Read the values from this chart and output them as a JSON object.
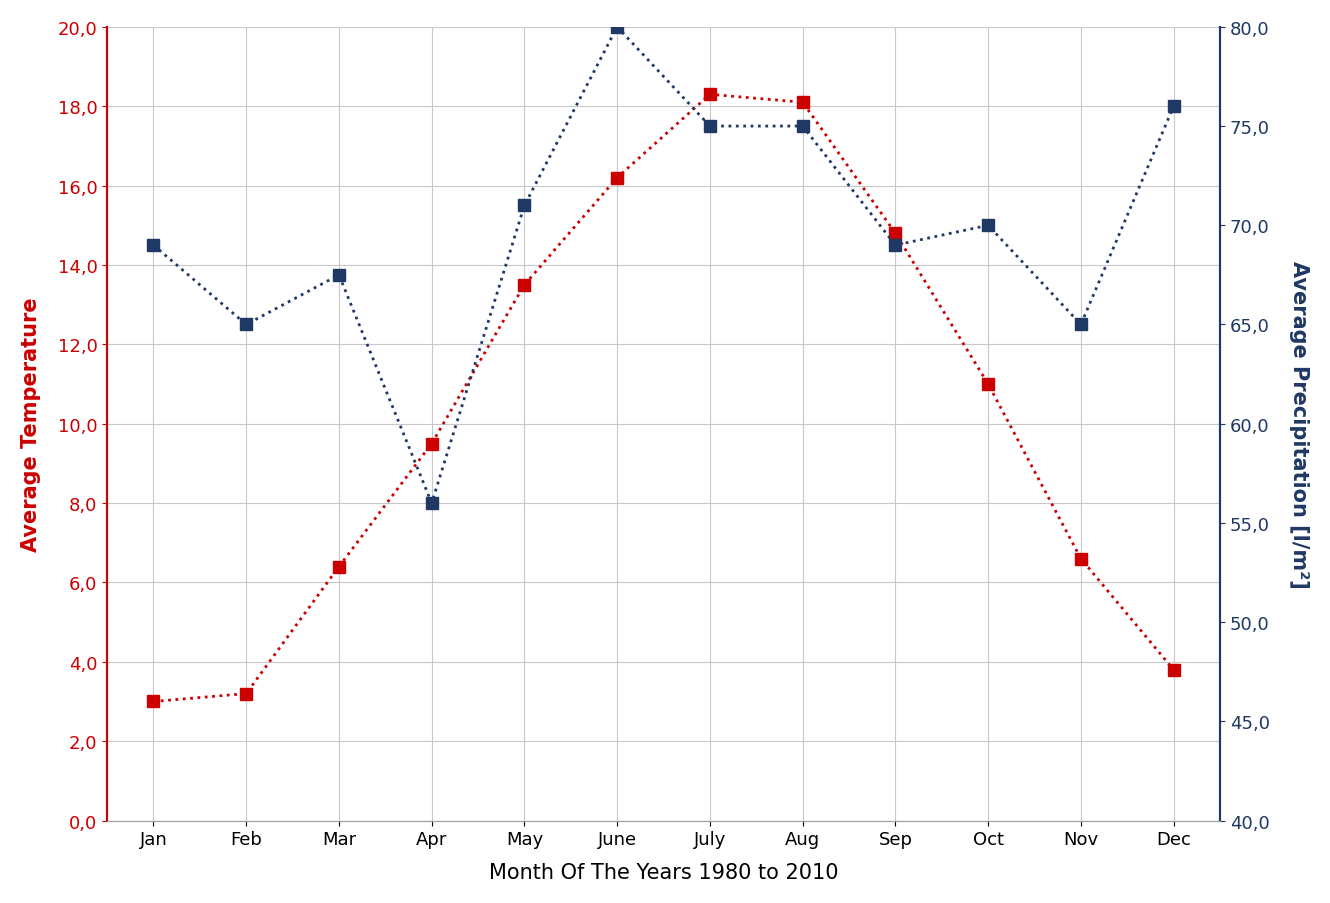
{
  "months": [
    "Jan",
    "Feb",
    "Mar",
    "Apr",
    "May",
    "June",
    "July",
    "Aug",
    "Sep",
    "Oct",
    "Nov",
    "Dec"
  ],
  "temperature": [
    3.0,
    3.2,
    6.4,
    9.5,
    13.5,
    16.2,
    18.3,
    18.1,
    14.8,
    11.0,
    6.6,
    3.8
  ],
  "precipitation": [
    69.0,
    65.0,
    67.5,
    56.0,
    71.0,
    80.0,
    75.0,
    75.0,
    69.0,
    70.0,
    65.0,
    76.0
  ],
  "temp_color": "#CC0000",
  "precip_color": "#1F3864",
  "xlabel": "Month Of The Years 1980 to 2010",
  "ylabel_left": "Average Temperature",
  "ylabel_right": "Average Precipitation [l/m²]",
  "ylim_left": [
    0.0,
    20.0
  ],
  "ylim_right": [
    40.0,
    80.0
  ],
  "yticks_left": [
    0.0,
    2.0,
    4.0,
    6.0,
    8.0,
    10.0,
    12.0,
    14.0,
    16.0,
    18.0,
    20.0
  ],
  "yticks_right": [
    40.0,
    45.0,
    50.0,
    55.0,
    60.0,
    65.0,
    70.0,
    75.0,
    80.0
  ],
  "background_color": "#FFFFFF",
  "grid_color": "#C8C8C8",
  "figsize": [
    13.3,
    9.04
  ],
  "dpi": 100
}
